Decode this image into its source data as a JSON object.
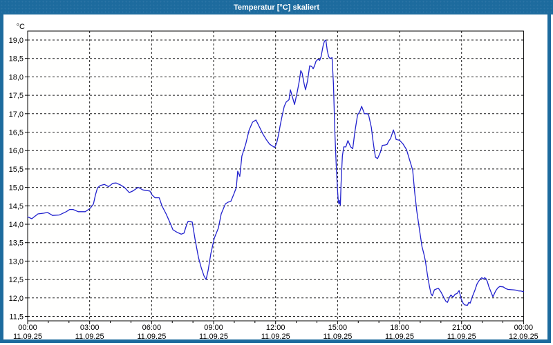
{
  "window": {
    "title": "Temperatur [°C] skaliert"
  },
  "colors": {
    "titlebar": "#1d6b9e",
    "window_border": "#1d6b9e",
    "plot_background": "#fffffe",
    "grid": "#1a1a1a",
    "axis": "#000000",
    "tick_label": "#000000",
    "line": "#2121cd"
  },
  "chart_data": {
    "type": "line",
    "title": "Temperatur [°C] skaliert",
    "ylabel": "°C",
    "series_name": "Temperatur",
    "grid": true,
    "ylim": [
      11.4,
      19.25
    ],
    "x_range_minutes": [
      0,
      1440
    ],
    "x_minor_tick_every_minutes": 60,
    "y_ticks": [
      {
        "v": 19.0,
        "label": "19,0"
      },
      {
        "v": 18.5,
        "label": "18,5"
      },
      {
        "v": 18.0,
        "label": "18,0"
      },
      {
        "v": 17.5,
        "label": "17,5"
      },
      {
        "v": 17.0,
        "label": "17,0"
      },
      {
        "v": 16.5,
        "label": "16,5"
      },
      {
        "v": 16.0,
        "label": "16,0"
      },
      {
        "v": 15.5,
        "label": "15,5"
      },
      {
        "v": 15.0,
        "label": "15,0"
      },
      {
        "v": 14.5,
        "label": "14,5"
      },
      {
        "v": 14.0,
        "label": "14,0"
      },
      {
        "v": 13.5,
        "label": "13,5"
      },
      {
        "v": 13.0,
        "label": "13,0"
      },
      {
        "v": 12.5,
        "label": "12,5"
      },
      {
        "v": 12.0,
        "label": "12,0"
      },
      {
        "v": 11.5,
        "label": "11,5"
      }
    ],
    "x_ticks": [
      {
        "t": 0,
        "time": "00:00",
        "date": "11.09.25"
      },
      {
        "t": 180,
        "time": "03:00",
        "date": "11.09.25"
      },
      {
        "t": 360,
        "time": "06:00",
        "date": "11.09.25"
      },
      {
        "t": 540,
        "time": "09:00",
        "date": "11.09.25"
      },
      {
        "t": 720,
        "time": "12:00",
        "date": "11.09.25"
      },
      {
        "t": 900,
        "time": "15:00",
        "date": "11.09.25"
      },
      {
        "t": 1080,
        "time": "18:00",
        "date": "11.09.25"
      },
      {
        "t": 1260,
        "time": "21:00",
        "date": "11.09.25"
      },
      {
        "t": 1440,
        "time": "00:00",
        "date": "12.09.25"
      }
    ],
    "points": [
      [
        0,
        14.2
      ],
      [
        12,
        14.15
      ],
      [
        30,
        14.28
      ],
      [
        46,
        14.3
      ],
      [
        58,
        14.32
      ],
      [
        72,
        14.24
      ],
      [
        92,
        14.25
      ],
      [
        112,
        14.34
      ],
      [
        122,
        14.4
      ],
      [
        132,
        14.4
      ],
      [
        147,
        14.34
      ],
      [
        167,
        14.34
      ],
      [
        177,
        14.4
      ],
      [
        183,
        14.45
      ],
      [
        191,
        14.55
      ],
      [
        197,
        14.8
      ],
      [
        203,
        14.99
      ],
      [
        211,
        15.05
      ],
      [
        223,
        15.08
      ],
      [
        235,
        15.02
      ],
      [
        247,
        15.11
      ],
      [
        257,
        15.12
      ],
      [
        271,
        15.06
      ],
      [
        281,
        15.0
      ],
      [
        295,
        14.86
      ],
      [
        305,
        14.9
      ],
      [
        321,
        15.0
      ],
      [
        335,
        14.93
      ],
      [
        355,
        14.9
      ],
      [
        361,
        14.8
      ],
      [
        370,
        14.72
      ],
      [
        382,
        14.72
      ],
      [
        390,
        14.5
      ],
      [
        402,
        14.28
      ],
      [
        412,
        14.07
      ],
      [
        422,
        13.85
      ],
      [
        434,
        13.78
      ],
      [
        446,
        13.73
      ],
      [
        454,
        13.76
      ],
      [
        462,
        14.0
      ],
      [
        466,
        14.08
      ],
      [
        478,
        14.06
      ],
      [
        486,
        13.6
      ],
      [
        496,
        13.1
      ],
      [
        504,
        12.82
      ],
      [
        512,
        12.6
      ],
      [
        518,
        12.5
      ],
      [
        524,
        12.75
      ],
      [
        532,
        13.2
      ],
      [
        542,
        13.62
      ],
      [
        554,
        13.9
      ],
      [
        562,
        14.28
      ],
      [
        574,
        14.55
      ],
      [
        582,
        14.6
      ],
      [
        590,
        14.62
      ],
      [
        598,
        14.8
      ],
      [
        606,
        15.0
      ],
      [
        610,
        15.44
      ],
      [
        616,
        15.3
      ],
      [
        622,
        15.85
      ],
      [
        633,
        16.17
      ],
      [
        643,
        16.55
      ],
      [
        653,
        16.77
      ],
      [
        663,
        16.83
      ],
      [
        673,
        16.64
      ],
      [
        683,
        16.45
      ],
      [
        693,
        16.3
      ],
      [
        703,
        16.17
      ],
      [
        713,
        16.11
      ],
      [
        717,
        16.08
      ],
      [
        723,
        16.2
      ],
      [
        729,
        16.45
      ],
      [
        733,
        16.67
      ],
      [
        739,
        16.95
      ],
      [
        745,
        17.2
      ],
      [
        751,
        17.32
      ],
      [
        759,
        17.38
      ],
      [
        763,
        17.65
      ],
      [
        769,
        17.45
      ],
      [
        775,
        17.25
      ],
      [
        783,
        17.6
      ],
      [
        789,
        17.9
      ],
      [
        793,
        18.17
      ],
      [
        797,
        18.1
      ],
      [
        803,
        17.8
      ],
      [
        807,
        17.65
      ],
      [
        813,
        17.9
      ],
      [
        819,
        18.3
      ],
      [
        825,
        18.28
      ],
      [
        829,
        18.22
      ],
      [
        833,
        18.3
      ],
      [
        837,
        18.42
      ],
      [
        843,
        18.48
      ],
      [
        848,
        18.45
      ],
      [
        852,
        18.55
      ],
      [
        858,
        18.85
      ],
      [
        862,
        18.97
      ],
      [
        866,
        19.0
      ],
      [
        870,
        18.72
      ],
      [
        874,
        18.55
      ],
      [
        878,
        18.5
      ],
      [
        884,
        18.52
      ],
      [
        888,
        17.8
      ],
      [
        892,
        16.5
      ],
      [
        896,
        15.6
      ],
      [
        900,
        14.9
      ],
      [
        902,
        14.62
      ],
      [
        904,
        14.55
      ],
      [
        906,
        14.65
      ],
      [
        908,
        14.52
      ],
      [
        910,
        15.1
      ],
      [
        914,
        15.85
      ],
      [
        918,
        16.1
      ],
      [
        924,
        16.1
      ],
      [
        930,
        16.27
      ],
      [
        938,
        16.1
      ],
      [
        944,
        16.05
      ],
      [
        950,
        16.5
      ],
      [
        958,
        16.97
      ],
      [
        964,
        17.05
      ],
      [
        970,
        17.2
      ],
      [
        978,
        17.0
      ],
      [
        986,
        17.0
      ],
      [
        990,
        16.97
      ],
      [
        998,
        16.63
      ],
      [
        1002,
        16.32
      ],
      [
        1006,
        16.05
      ],
      [
        1010,
        15.82
      ],
      [
        1016,
        15.78
      ],
      [
        1024,
        15.95
      ],
      [
        1030,
        16.14
      ],
      [
        1038,
        16.15
      ],
      [
        1044,
        16.17
      ],
      [
        1048,
        16.25
      ],
      [
        1054,
        16.33
      ],
      [
        1062,
        16.56
      ],
      [
        1066,
        16.45
      ],
      [
        1070,
        16.3
      ],
      [
        1080,
        16.28
      ],
      [
        1090,
        16.18
      ],
      [
        1100,
        16.03
      ],
      [
        1108,
        15.78
      ],
      [
        1118,
        15.47
      ],
      [
        1124,
        14.85
      ],
      [
        1130,
        14.35
      ],
      [
        1139,
        13.78
      ],
      [
        1145,
        13.4
      ],
      [
        1151,
        13.18
      ],
      [
        1155,
        13.0
      ],
      [
        1161,
        12.62
      ],
      [
        1167,
        12.3
      ],
      [
        1171,
        12.12
      ],
      [
        1175,
        12.06
      ],
      [
        1181,
        12.22
      ],
      [
        1189,
        12.25
      ],
      [
        1193,
        12.26
      ],
      [
        1201,
        12.15
      ],
      [
        1209,
        12.0
      ],
      [
        1215,
        11.9
      ],
      [
        1219,
        11.88
      ],
      [
        1225,
        12.02
      ],
      [
        1229,
        12.08
      ],
      [
        1235,
        12.02
      ],
      [
        1241,
        12.1
      ],
      [
        1247,
        12.12
      ],
      [
        1253,
        12.2
      ],
      [
        1259,
        11.97
      ],
      [
        1265,
        11.85
      ],
      [
        1269,
        11.81
      ],
      [
        1277,
        11.8
      ],
      [
        1281,
        11.88
      ],
      [
        1285,
        11.86
      ],
      [
        1291,
        12.03
      ],
      [
        1299,
        12.22
      ],
      [
        1305,
        12.38
      ],
      [
        1311,
        12.47
      ],
      [
        1315,
        12.52
      ],
      [
        1319,
        12.55
      ],
      [
        1323,
        12.51
      ],
      [
        1327,
        12.55
      ],
      [
        1331,
        12.52
      ],
      [
        1335,
        12.44
      ],
      [
        1339,
        12.31
      ],
      [
        1345,
        12.17
      ],
      [
        1351,
        12.03
      ],
      [
        1359,
        12.19
      ],
      [
        1365,
        12.27
      ],
      [
        1371,
        12.31
      ],
      [
        1381,
        12.3
      ],
      [
        1389,
        12.25
      ],
      [
        1395,
        12.23
      ],
      [
        1412,
        12.22
      ],
      [
        1420,
        12.21
      ],
      [
        1426,
        12.19
      ],
      [
        1432,
        12.19
      ],
      [
        1440,
        12.17
      ]
    ]
  }
}
